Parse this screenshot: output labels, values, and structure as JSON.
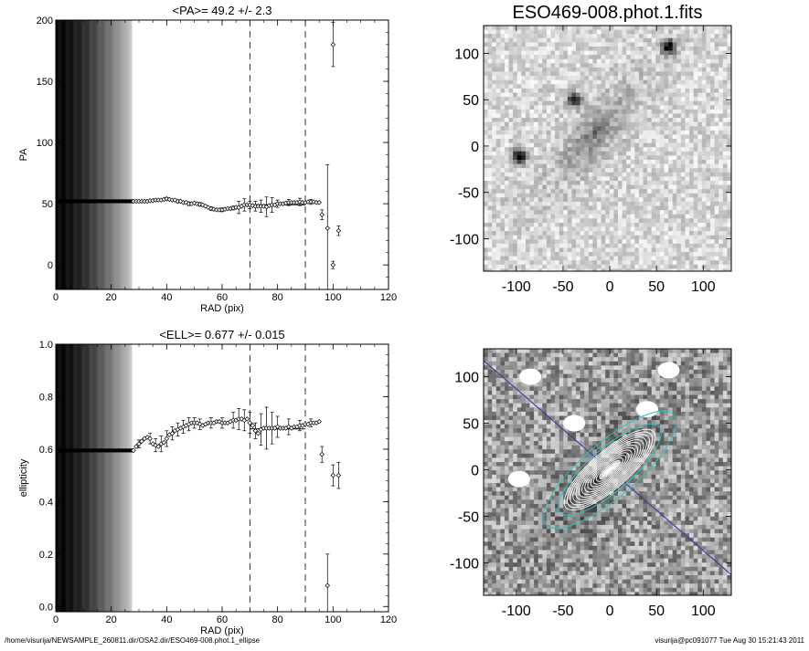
{
  "footer": {
    "left": "/home/visurija/NEWSAMPLE_260811.dir/OSA2.dir/ESO469-008.phot.1_ellipse",
    "right": "visurija@pc091077  Tue Aug 30 15:21:43 2011"
  },
  "chart_data": [
    {
      "type": "scatter",
      "id": "pa",
      "title": "<PA>=  49.2 +/-   2.3",
      "xlabel": "RAD (pix)",
      "ylabel": "PA",
      "xlim": [
        0,
        120
      ],
      "ylim": [
        -20,
        200
      ],
      "xticks": [
        "0",
        "20",
        "40",
        "60",
        "80",
        "100",
        "120"
      ],
      "yticks": [
        "0",
        "50",
        "100",
        "150",
        "200"
      ],
      "grid": false,
      "dashed_lines_x": [
        70,
        90
      ],
      "mean_line": {
        "x_range": [
          70,
          90
        ],
        "y": 49.2
      },
      "shade_x_end": 27.5,
      "points": [
        {
          "x": 28,
          "y": 52
        },
        {
          "x": 29,
          "y": 52
        },
        {
          "x": 30,
          "y": 52
        },
        {
          "x": 31,
          "y": 52
        },
        {
          "x": 32,
          "y": 52
        },
        {
          "x": 33,
          "y": 52
        },
        {
          "x": 34,
          "y": 52.5
        },
        {
          "x": 35,
          "y": 52.5
        },
        {
          "x": 36,
          "y": 53
        },
        {
          "x": 37,
          "y": 53
        },
        {
          "x": 38,
          "y": 53
        },
        {
          "x": 39,
          "y": 53.5
        },
        {
          "x": 40,
          "y": 54
        },
        {
          "x": 41,
          "y": 53.5
        },
        {
          "x": 42,
          "y": 53
        },
        {
          "x": 43,
          "y": 53
        },
        {
          "x": 44,
          "y": 52
        },
        {
          "x": 45,
          "y": 52
        },
        {
          "x": 46,
          "y": 51
        },
        {
          "x": 47,
          "y": 51
        },
        {
          "x": 48,
          "y": 50
        },
        {
          "x": 49,
          "y": 50
        },
        {
          "x": 50,
          "y": 50.5
        },
        {
          "x": 51,
          "y": 50
        },
        {
          "x": 52,
          "y": 49.5
        },
        {
          "x": 53,
          "y": 49
        },
        {
          "x": 54,
          "y": 48
        },
        {
          "x": 55,
          "y": 47
        },
        {
          "x": 56,
          "y": 46
        },
        {
          "x": 57,
          "y": 45.5
        },
        {
          "x": 58,
          "y": 45
        },
        {
          "x": 59,
          "y": 45
        },
        {
          "x": 60,
          "y": 45
        },
        {
          "x": 61,
          "y": 45.5
        },
        {
          "x": 62,
          "y": 46
        },
        {
          "x": 63,
          "y": 46
        },
        {
          "x": 64,
          "y": 46.5
        },
        {
          "x": 65,
          "y": 47
        },
        {
          "x": 66,
          "y": 47
        },
        {
          "x": 67,
          "y": 48
        },
        {
          "x": 68,
          "y": 49
        },
        {
          "x": 69,
          "y": 49
        },
        {
          "x": 70,
          "y": 49
        },
        {
          "x": 71,
          "y": 48.5
        },
        {
          "x": 72,
          "y": 48
        },
        {
          "x": 73,
          "y": 48
        },
        {
          "x": 74,
          "y": 48
        },
        {
          "x": 75,
          "y": 48
        },
        {
          "x": 76,
          "y": 47.5
        },
        {
          "x": 77,
          "y": 48.5
        },
        {
          "x": 78,
          "y": 49
        },
        {
          "x": 79,
          "y": 49
        },
        {
          "x": 80,
          "y": 50
        },
        {
          "x": 81,
          "y": 50
        },
        {
          "x": 82,
          "y": 50
        },
        {
          "x": 83,
          "y": 50.5
        },
        {
          "x": 84,
          "y": 51
        },
        {
          "x": 85,
          "y": 51
        },
        {
          "x": 86,
          "y": 51
        },
        {
          "x": 87,
          "y": 51
        },
        {
          "x": 88,
          "y": 51.5
        },
        {
          "x": 89,
          "y": 51
        },
        {
          "x": 90,
          "y": 51
        },
        {
          "x": 91,
          "y": 51.5
        },
        {
          "x": 92,
          "y": 51.5
        },
        {
          "x": 93,
          "y": 51.5
        },
        {
          "x": 94,
          "y": 51
        },
        {
          "x": 95,
          "y": 51
        },
        {
          "x": 96,
          "y": 41
        },
        {
          "x": 98,
          "y": 30
        },
        {
          "x": 100,
          "y": 180
        },
        {
          "x": 100,
          "y": 0
        },
        {
          "x": 102,
          "y": 28
        }
      ],
      "errorbars": [
        {
          "x": 36,
          "y": 53,
          "e": 1
        },
        {
          "x": 40,
          "y": 54,
          "e": 1.2
        },
        {
          "x": 44,
          "y": 52,
          "e": 1.2
        },
        {
          "x": 48,
          "y": 50,
          "e": 1.5
        },
        {
          "x": 52,
          "y": 49.5,
          "e": 1.5
        },
        {
          "x": 56,
          "y": 46,
          "e": 1.5
        },
        {
          "x": 60,
          "y": 45,
          "e": 1.5
        },
        {
          "x": 64,
          "y": 46.5,
          "e": 1.5
        },
        {
          "x": 66,
          "y": 47,
          "e": 5
        },
        {
          "x": 68,
          "y": 49,
          "e": 5
        },
        {
          "x": 70,
          "y": 49,
          "e": 3
        },
        {
          "x": 72,
          "y": 48,
          "e": 4
        },
        {
          "x": 74,
          "y": 48,
          "e": 5
        },
        {
          "x": 76,
          "y": 47.5,
          "e": 8
        },
        {
          "x": 78,
          "y": 49,
          "e": 6
        },
        {
          "x": 80,
          "y": 50,
          "e": 3
        },
        {
          "x": 84,
          "y": 51,
          "e": 2.5
        },
        {
          "x": 88,
          "y": 51.5,
          "e": 3
        },
        {
          "x": 92,
          "y": 51.5,
          "e": 2
        },
        {
          "x": 96,
          "y": 41,
          "e": 4
        },
        {
          "x": 98,
          "y": 30,
          "e": 52
        },
        {
          "x": 100,
          "y": 180,
          "e": 18
        },
        {
          "x": 100,
          "y": 0,
          "e": 3
        },
        {
          "x": 102,
          "y": 28,
          "e": 4
        }
      ]
    },
    {
      "type": "scatter",
      "id": "ell",
      "title": "<ELL>= 0.677 +/-   0.015",
      "xlabel": "RAD (pix)",
      "ylabel": "ellipticity",
      "xlim": [
        0,
        120
      ],
      "ylim": [
        -0.02,
        1.0
      ],
      "xticks": [
        "0",
        "20",
        "40",
        "60",
        "80",
        "100",
        "120"
      ],
      "yticks": [
        "0.0",
        "0.2",
        "0.4",
        "0.6",
        "0.8",
        "1.0"
      ],
      "grid": false,
      "dashed_lines_x": [
        70,
        90
      ],
      "mean_line": {
        "x_range": [
          70,
          90
        ],
        "y": 0.677
      },
      "shade_x_end": 27.5,
      "points": [
        {
          "x": 28,
          "y": 0.595
        },
        {
          "x": 29,
          "y": 0.61
        },
        {
          "x": 30,
          "y": 0.62
        },
        {
          "x": 31,
          "y": 0.63
        },
        {
          "x": 32,
          "y": 0.64
        },
        {
          "x": 33,
          "y": 0.645
        },
        {
          "x": 34,
          "y": 0.64
        },
        {
          "x": 35,
          "y": 0.62
        },
        {
          "x": 36,
          "y": 0.615
        },
        {
          "x": 37,
          "y": 0.61
        },
        {
          "x": 38,
          "y": 0.62
        },
        {
          "x": 39,
          "y": 0.625
        },
        {
          "x": 40,
          "y": 0.64
        },
        {
          "x": 41,
          "y": 0.655
        },
        {
          "x": 42,
          "y": 0.66
        },
        {
          "x": 43,
          "y": 0.67
        },
        {
          "x": 44,
          "y": 0.675
        },
        {
          "x": 45,
          "y": 0.68
        },
        {
          "x": 46,
          "y": 0.685
        },
        {
          "x": 47,
          "y": 0.69
        },
        {
          "x": 48,
          "y": 0.695
        },
        {
          "x": 49,
          "y": 0.7
        },
        {
          "x": 50,
          "y": 0.7
        },
        {
          "x": 51,
          "y": 0.7
        },
        {
          "x": 52,
          "y": 0.695
        },
        {
          "x": 53,
          "y": 0.69
        },
        {
          "x": 54,
          "y": 0.695
        },
        {
          "x": 55,
          "y": 0.7
        },
        {
          "x": 56,
          "y": 0.7
        },
        {
          "x": 57,
          "y": 0.7
        },
        {
          "x": 58,
          "y": 0.705
        },
        {
          "x": 59,
          "y": 0.705
        },
        {
          "x": 60,
          "y": 0.7
        },
        {
          "x": 61,
          "y": 0.7
        },
        {
          "x": 62,
          "y": 0.7
        },
        {
          "x": 63,
          "y": 0.705
        },
        {
          "x": 64,
          "y": 0.71
        },
        {
          "x": 65,
          "y": 0.71
        },
        {
          "x": 66,
          "y": 0.715
        },
        {
          "x": 67,
          "y": 0.715
        },
        {
          "x": 68,
          "y": 0.71
        },
        {
          "x": 69,
          "y": 0.715
        },
        {
          "x": 70,
          "y": 0.7
        },
        {
          "x": 71,
          "y": 0.69
        },
        {
          "x": 72,
          "y": 0.67
        },
        {
          "x": 73,
          "y": 0.66
        },
        {
          "x": 74,
          "y": 0.675
        },
        {
          "x": 75,
          "y": 0.68
        },
        {
          "x": 76,
          "y": 0.68
        },
        {
          "x": 77,
          "y": 0.68
        },
        {
          "x": 78,
          "y": 0.68
        },
        {
          "x": 79,
          "y": 0.68
        },
        {
          "x": 80,
          "y": 0.685
        },
        {
          "x": 81,
          "y": 0.68
        },
        {
          "x": 82,
          "y": 0.68
        },
        {
          "x": 83,
          "y": 0.68
        },
        {
          "x": 84,
          "y": 0.685
        },
        {
          "x": 85,
          "y": 0.68
        },
        {
          "x": 86,
          "y": 0.685
        },
        {
          "x": 87,
          "y": 0.685
        },
        {
          "x": 88,
          "y": 0.69
        },
        {
          "x": 89,
          "y": 0.69
        },
        {
          "x": 90,
          "y": 0.695
        },
        {
          "x": 91,
          "y": 0.695
        },
        {
          "x": 92,
          "y": 0.7
        },
        {
          "x": 93,
          "y": 0.7
        },
        {
          "x": 94,
          "y": 0.7
        },
        {
          "x": 95,
          "y": 0.705
        },
        {
          "x": 96,
          "y": 0.58
        },
        {
          "x": 98,
          "y": 0.08
        },
        {
          "x": 100,
          "y": 0.5
        },
        {
          "x": 102,
          "y": 0.5
        }
      ],
      "errorbars": [
        {
          "x": 30,
          "y": 0.62,
          "e": 0.015
        },
        {
          "x": 34,
          "y": 0.64,
          "e": 0.02
        },
        {
          "x": 36,
          "y": 0.615,
          "e": 0.025
        },
        {
          "x": 38,
          "y": 0.62,
          "e": 0.03
        },
        {
          "x": 40,
          "y": 0.64,
          "e": 0.03
        },
        {
          "x": 42,
          "y": 0.66,
          "e": 0.025
        },
        {
          "x": 44,
          "y": 0.675,
          "e": 0.025
        },
        {
          "x": 46,
          "y": 0.685,
          "e": 0.025
        },
        {
          "x": 48,
          "y": 0.695,
          "e": 0.025
        },
        {
          "x": 50,
          "y": 0.7,
          "e": 0.02
        },
        {
          "x": 52,
          "y": 0.695,
          "e": 0.02
        },
        {
          "x": 56,
          "y": 0.7,
          "e": 0.02
        },
        {
          "x": 60,
          "y": 0.7,
          "e": 0.02
        },
        {
          "x": 64,
          "y": 0.71,
          "e": 0.03
        },
        {
          "x": 66,
          "y": 0.715,
          "e": 0.04
        },
        {
          "x": 68,
          "y": 0.71,
          "e": 0.04
        },
        {
          "x": 70,
          "y": 0.7,
          "e": 0.04
        },
        {
          "x": 72,
          "y": 0.67,
          "e": 0.03
        },
        {
          "x": 74,
          "y": 0.675,
          "e": 0.06
        },
        {
          "x": 76,
          "y": 0.68,
          "e": 0.08
        },
        {
          "x": 78,
          "y": 0.68,
          "e": 0.06
        },
        {
          "x": 80,
          "y": 0.685,
          "e": 0.04
        },
        {
          "x": 84,
          "y": 0.685,
          "e": 0.03
        },
        {
          "x": 88,
          "y": 0.69,
          "e": 0.02
        },
        {
          "x": 92,
          "y": 0.7,
          "e": 0.015
        },
        {
          "x": 96,
          "y": 0.58,
          "e": 0.03
        },
        {
          "x": 98,
          "y": 0.08,
          "e": 0.12
        },
        {
          "x": 100,
          "y": 0.5,
          "e": 0.04
        },
        {
          "x": 102,
          "y": 0.5,
          "e": 0.05
        }
      ]
    },
    {
      "type": "heatmap",
      "id": "image",
      "title": "ESO469-008.phot.1.fits",
      "xlim": [
        -135,
        130
      ],
      "ylim": [
        -135,
        130
      ],
      "xticks": [
        "-100",
        "-50",
        "0",
        "50",
        "100"
      ],
      "yticks": [
        "-100",
        "-50",
        "0",
        "50",
        "100"
      ],
      "sources": [
        {
          "x": -97,
          "y": -10,
          "strength": 0.95
        },
        {
          "x": 63,
          "y": 107,
          "strength": 0.9
        },
        {
          "x": -38,
          "y": 50,
          "strength": 0.7
        }
      ],
      "galaxy": {
        "x": -15,
        "y": 15,
        "angle_deg": 49.2,
        "ellipticity": 0.677
      }
    },
    {
      "type": "heatmap",
      "id": "model",
      "title": "",
      "xlim": [
        -135,
        130
      ],
      "ylim": [
        -135,
        130
      ],
      "xticks": [
        "-100",
        "-50",
        "0",
        "50",
        "100"
      ],
      "yticks": [
        "-100",
        "-50",
        "0",
        "50",
        "100"
      ],
      "masks": [
        {
          "x": -97,
          "y": -10
        },
        {
          "x": 63,
          "y": 107
        },
        {
          "x": -38,
          "y": 50
        },
        {
          "x": 40,
          "y": 65
        },
        {
          "x": -85,
          "y": 100
        }
      ],
      "major_axis_angle_deg": -41,
      "ellipse_center": {
        "x": 0,
        "y": 0
      },
      "ellipse_angle_deg": 49.2,
      "ellipse_ellipticity": 0.677,
      "contour_smas": [
        6,
        10,
        14,
        18,
        22,
        26,
        30,
        34,
        38,
        42,
        46,
        50,
        54,
        58,
        62
      ],
      "outer_smas": [
        70,
        90
      ],
      "colors": {
        "contour": "#ffffff",
        "outer": "#30c0c0",
        "axis": "#4040a0"
      }
    }
  ]
}
